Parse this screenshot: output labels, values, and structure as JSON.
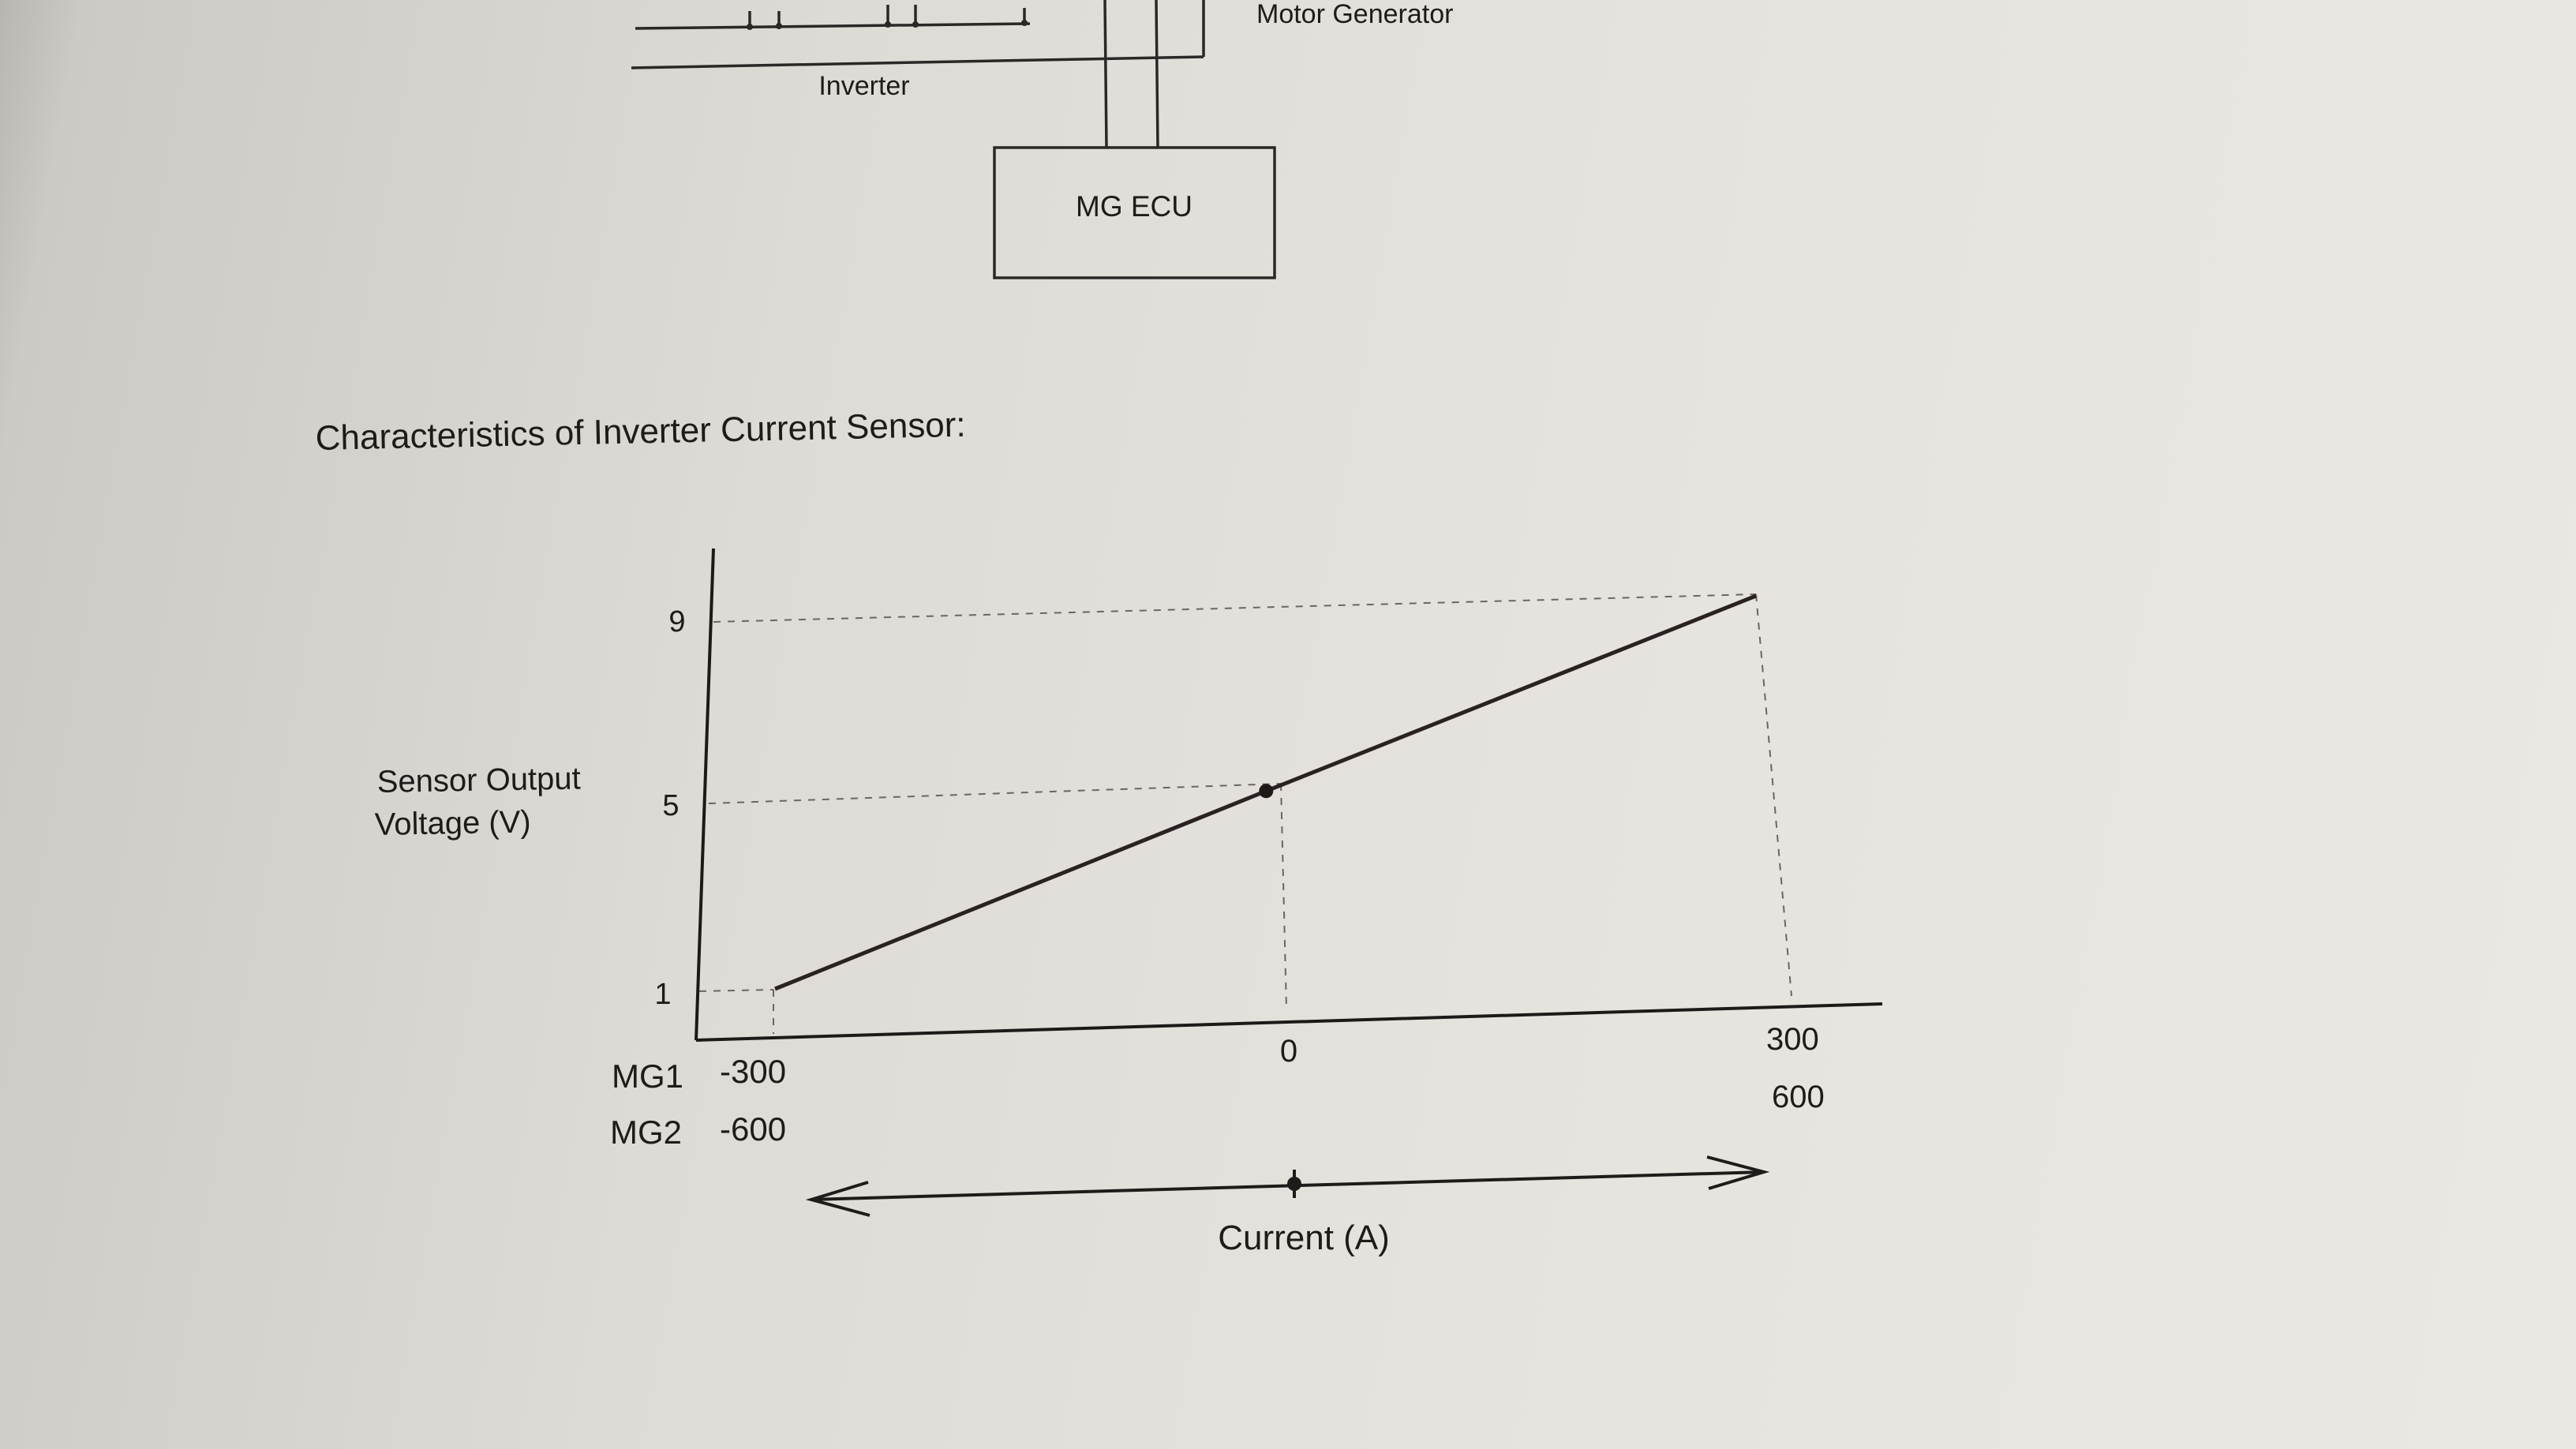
{
  "diagram": {
    "motor_generator_label": "Motor Generator",
    "inverter_label": "Inverter",
    "mg_ecu_label": "MG ECU"
  },
  "section_title": "Characteristics of Inverter Current Sensor:",
  "chart_data": {
    "type": "line",
    "title": "",
    "ylabel": [
      "Sensor Output",
      "Voltage (V)"
    ],
    "xlabel": "Current (A)",
    "y_ticks": [
      "1",
      "5",
      "9"
    ],
    "x_ticks": [
      "-300",
      "0",
      "300"
    ],
    "x_ticks_mg2": [
      "-600",
      "600"
    ],
    "x_row_labels": [
      "MG1",
      "MG2"
    ],
    "series": [
      {
        "x": [
          -300,
          0,
          300
        ],
        "y": [
          1,
          5,
          9
        ]
      }
    ],
    "marked_points": [
      {
        "x": 0,
        "y": 5
      }
    ],
    "xlim": [
      -300,
      300
    ],
    "ylim": [
      1,
      9
    ],
    "grid": false
  }
}
